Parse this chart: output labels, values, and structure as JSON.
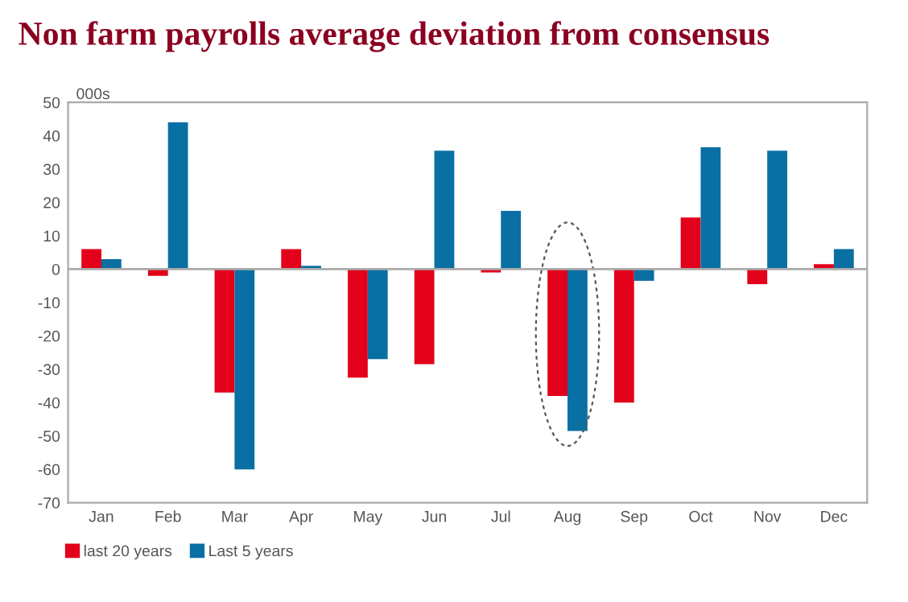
{
  "chart_data": {
    "type": "bar",
    "title": "Non farm payrolls average deviation from consensus",
    "ylabel": "000s",
    "categories": [
      "Jan",
      "Feb",
      "Mar",
      "Apr",
      "May",
      "Jun",
      "Jul",
      "Aug",
      "Sep",
      "Oct",
      "Nov",
      "Dec"
    ],
    "series": [
      {
        "name": "last 20 years",
        "color": "#e3001b",
        "values": [
          6,
          -2,
          -37,
          6,
          -32.5,
          -28.5,
          -1,
          -38,
          -40,
          15.5,
          -4.5,
          1.5
        ]
      },
      {
        "name": "Last 5 years",
        "color": "#0a6fa3",
        "values": [
          3,
          44,
          -60,
          1,
          -27,
          35.5,
          17.5,
          -48.5,
          -3.5,
          36.5,
          35.5,
          6
        ]
      }
    ],
    "ylim": [
      -70,
      50
    ],
    "yticks": [
      -70,
      -60,
      -50,
      -40,
      -30,
      -20,
      -10,
      0,
      10,
      20,
      30,
      40,
      50
    ],
    "ref_lines": [
      {
        "axis": "y",
        "value": 0,
        "color": "#aaaaaa"
      }
    ],
    "legend": "bottom left"
  }
}
